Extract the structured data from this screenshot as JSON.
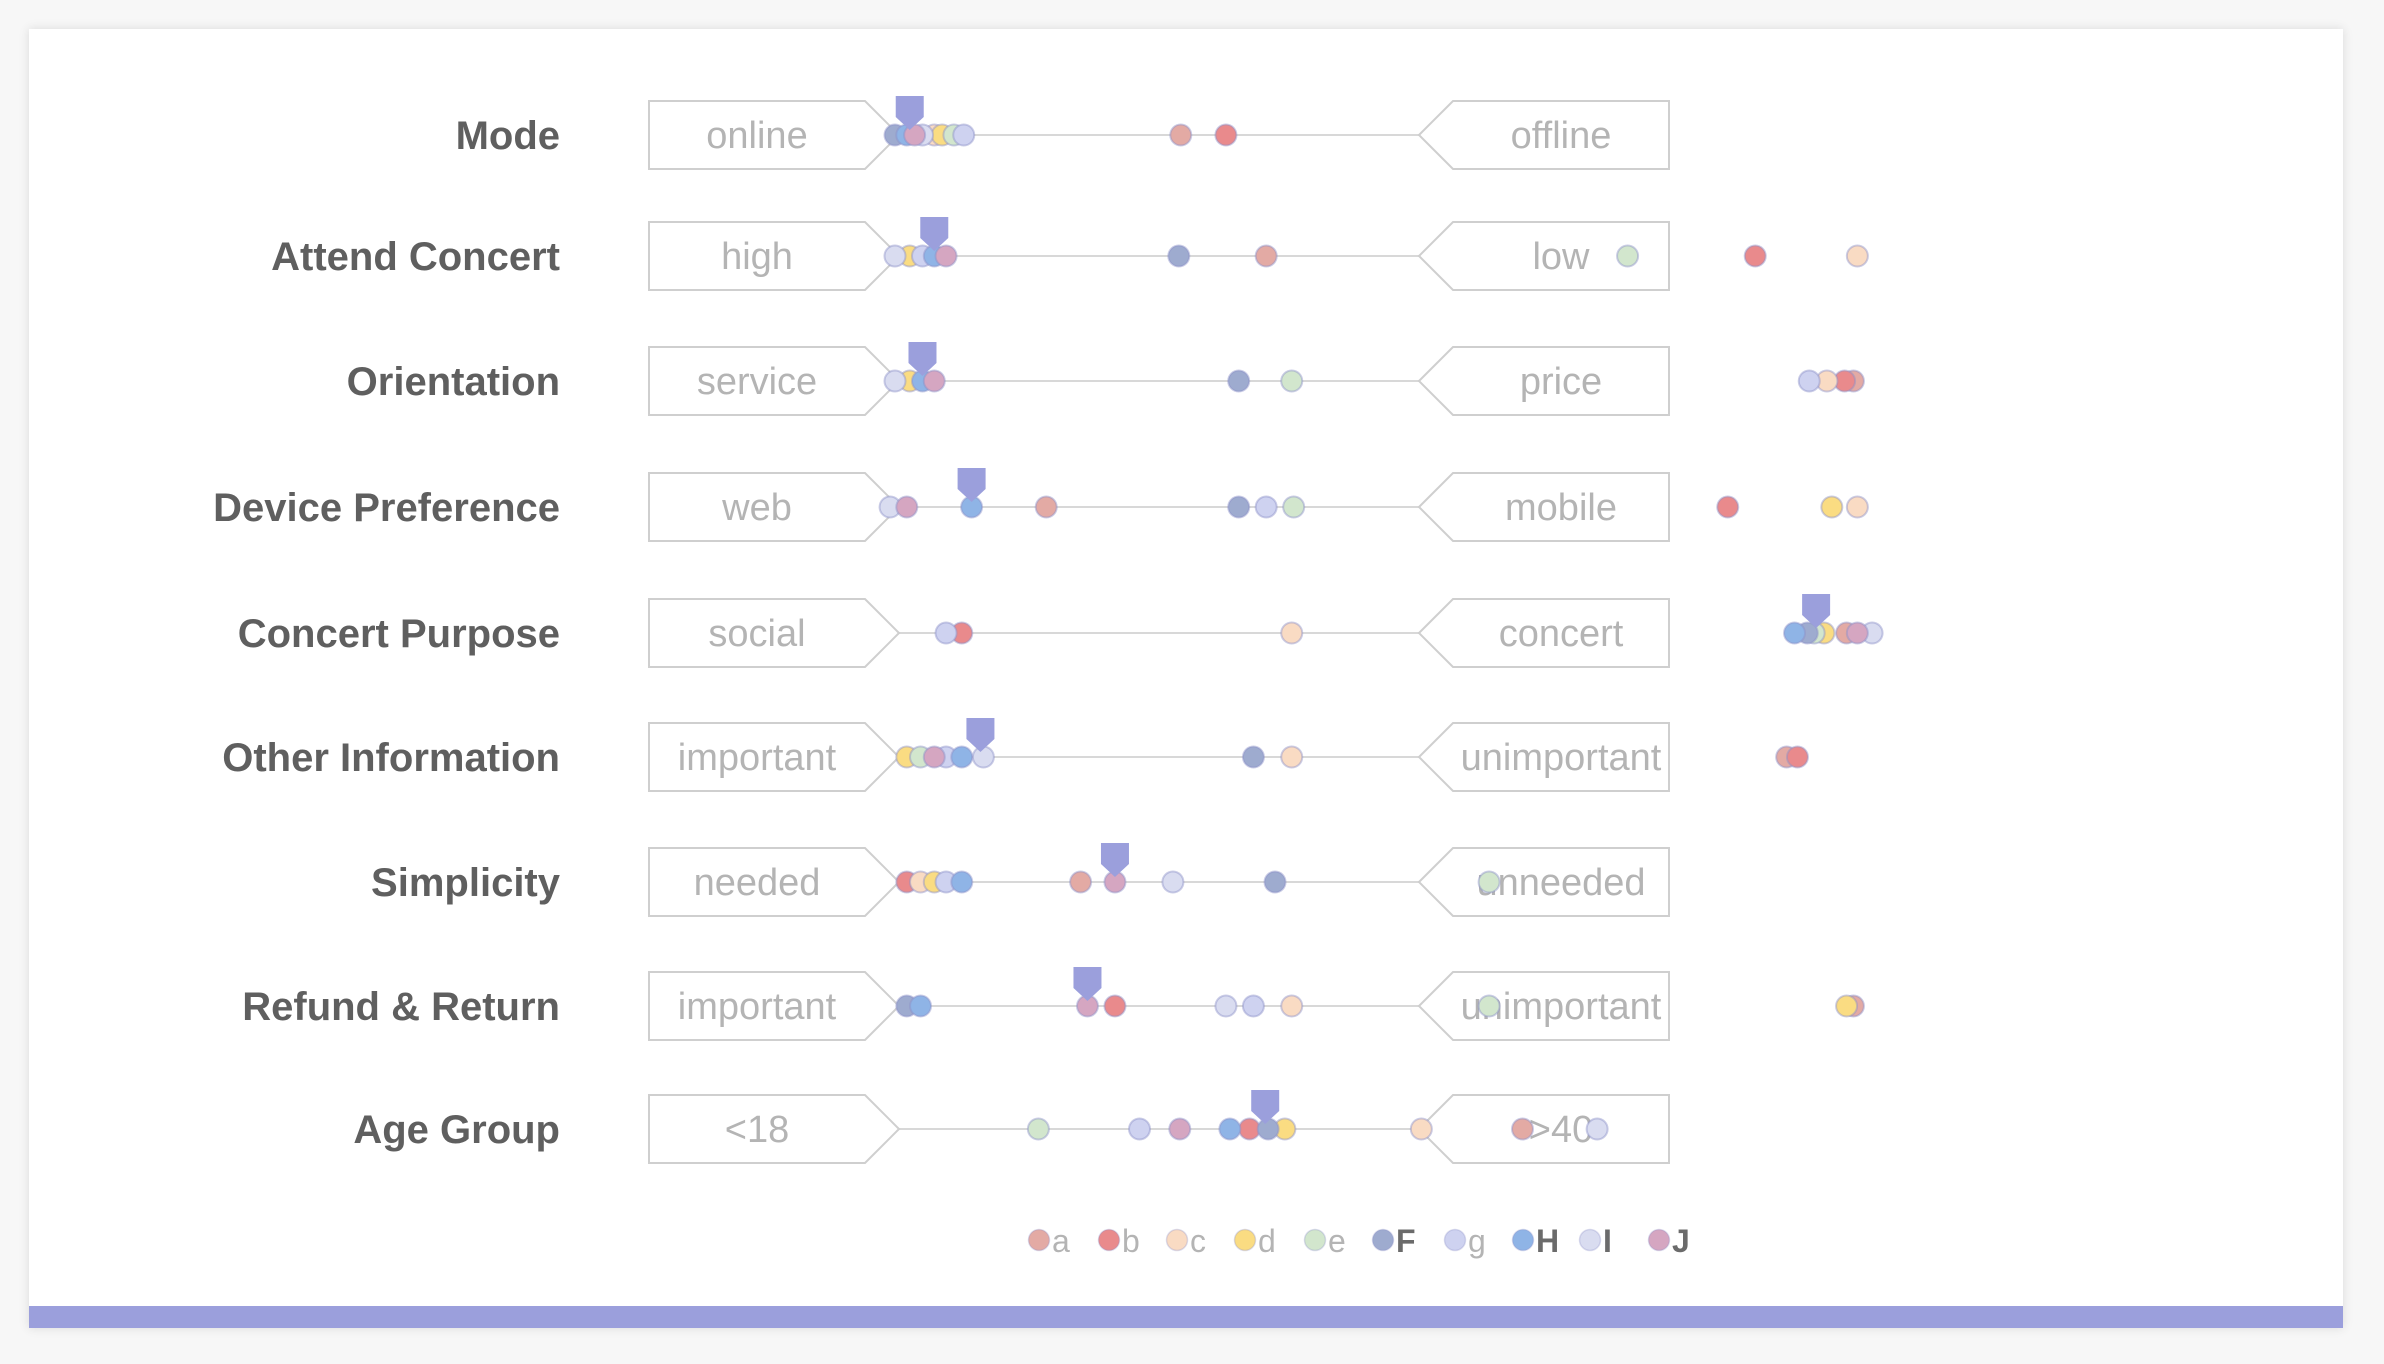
{
  "chart_data": {
    "type": "scatter",
    "xlim": [
      0,
      100
    ],
    "rows": [
      {
        "label": "Mode",
        "left": "online",
        "right": "offline",
        "marker": 1.5,
        "points": {
          "a": 29.1,
          "b": 33.7,
          "c": 4.0,
          "d": 4.8,
          "e": 6.0,
          "F": 0,
          "g": 7.0,
          "H": 1.2,
          "I": 2.8,
          "J": 2.0
        }
      },
      {
        "label": "Attend Concert",
        "left": "high",
        "right": "low",
        "marker": 4.0,
        "points": {
          "a": 37.8,
          "b": 87.6,
          "c": 98.0,
          "d": 1.5,
          "e": 74.6,
          "F": 28.9,
          "g": 2.8,
          "H": 4.0,
          "I": 0,
          "J": 5.2
        }
      },
      {
        "label": "Orientation",
        "left": "service",
        "right": "price",
        "marker": 2.8,
        "points": {
          "a": 97.6,
          "b": 96.7,
          "c": 94.9,
          "d": 1.5,
          "e": 40.4,
          "F": 35.0,
          "g": 93.1,
          "H": 2.8,
          "I": 0,
          "J": 4.0
        }
      },
      {
        "label": "Device Preference",
        "left": "web",
        "right": "mobile",
        "marker": 7.8,
        "points": {
          "a": 15.4,
          "b": 84.8,
          "c": 98.0,
          "d": 95.4,
          "e": 40.6,
          "F": 35.0,
          "g": 37.8,
          "H": 7.8,
          "I": -0.5,
          "J": 1.2
        }
      },
      {
        "label": "Concert Purpose",
        "left": "social",
        "right": "concert",
        "marker": 93.8,
        "points": {
          "a": 96.9,
          "b": 6.8,
          "c": 40.4,
          "d": 94.6,
          "e": 93.6,
          "F": 92.9,
          "g": 5.2,
          "H": 91.6,
          "I": 99.5,
          "J": 98.0
        }
      },
      {
        "label": "Other Information",
        "left": "important",
        "right": "unimportant",
        "marker": 8.7,
        "points": {
          "a": 90.8,
          "b": 91.9,
          "c": 40.4,
          "d": 1.2,
          "e": 2.6,
          "F": 36.5,
          "g": 5.2,
          "H": 6.8,
          "I": 9.0,
          "J": 4.0
        }
      },
      {
        "label": "Simplicity",
        "left": "needed",
        "right": "unneeded",
        "marker": 22.4,
        "points": {
          "a": 18.9,
          "b": 1.2,
          "c": 2.6,
          "d": 4.0,
          "e": 60.5,
          "F": 38.7,
          "g": 5.2,
          "H": 6.8,
          "I": 28.3,
          "J": 22.4
        }
      },
      {
        "label": "Refund & Return",
        "left": "important",
        "right": "unimportant",
        "marker": 19.6,
        "points": {
          "a": 97.6,
          "b": 22.4,
          "c": 40.4,
          "d": 96.9,
          "e": 60.5,
          "F": 1.2,
          "g": 36.5,
          "H": 2.6,
          "I": 33.7,
          "J": 19.6
        }
      },
      {
        "label": "Age Group",
        "left": "<18",
        "right": ">40",
        "marker": 37.7,
        "points": {
          "a": 63.9,
          "b": 36.1,
          "c": 53.6,
          "d": 39.7,
          "e": 14.6,
          "F": 38.0,
          "g": 24.9,
          "H": 34.1,
          "I": 71.5,
          "J": 29.0
        }
      }
    ],
    "series": [
      {
        "name": "a",
        "color": "#e3aaa4"
      },
      {
        "name": "b",
        "color": "#e98a8c"
      },
      {
        "name": "c",
        "color": "#f9dbc3"
      },
      {
        "name": "d",
        "color": "#fadc82"
      },
      {
        "name": "e",
        "color": "#d2e6cd"
      },
      {
        "name": "F",
        "color": "#9eabcf"
      },
      {
        "name": "g",
        "color": "#ced2f0"
      },
      {
        "name": "H",
        "color": "#8fb4e6"
      },
      {
        "name": "I",
        "color": "#d9dcf0"
      },
      {
        "name": "J",
        "color": "#d5a6c1"
      }
    ],
    "marker_color": "#9b9fdc",
    "legend_position": "bottom"
  }
}
